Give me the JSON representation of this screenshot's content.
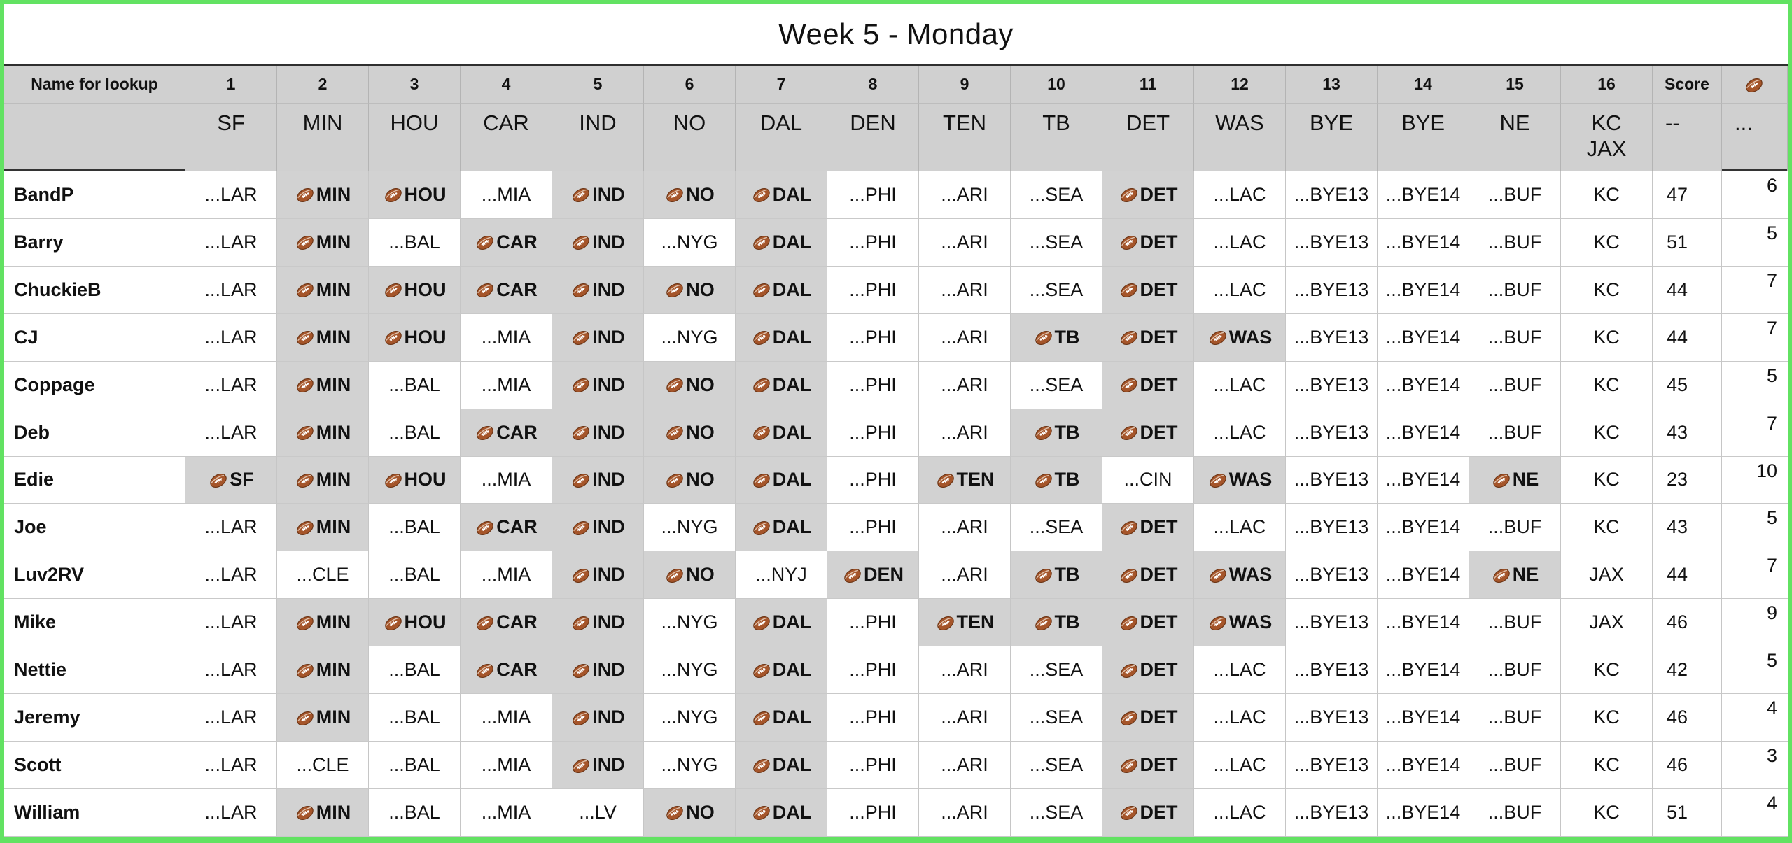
{
  "title": "Week 5 - Monday",
  "colors": {
    "selection_border_green": "#62e262",
    "header_gray": "#d0d0d0",
    "name_column_gray": "#dadada",
    "win_cell_gray": "#d2d2d2",
    "grid_line": "#c6c6c6",
    "football_brown": "#a5552a"
  },
  "icons": {
    "football": "football-icon"
  },
  "header": {
    "name_col": "Name for lookup",
    "week_numbers": [
      "1",
      "2",
      "3",
      "4",
      "5",
      "6",
      "7",
      "8",
      "9",
      "10",
      "11",
      "12",
      "13",
      "14",
      "15",
      "16"
    ],
    "score_label": "Score",
    "teams": [
      "SF",
      "MIN",
      "HOU",
      "CAR",
      "IND",
      "NO",
      "DAL",
      "DEN",
      "TEN",
      "TB",
      "DET",
      "WAS",
      "BYE",
      "BYE",
      "NE",
      "KC\nJAX"
    ],
    "score_sub": "--",
    "football_sub": "..."
  },
  "rows": [
    {
      "name": "BandP",
      "picks": [
        {
          "text": "...LAR",
          "win": false
        },
        {
          "text": "MIN",
          "win": true
        },
        {
          "text": "HOU",
          "win": true
        },
        {
          "text": "...MIA",
          "win": false
        },
        {
          "text": "IND",
          "win": true
        },
        {
          "text": "NO",
          "win": true
        },
        {
          "text": "DAL",
          "win": true
        },
        {
          "text": "...PHI",
          "win": false
        },
        {
          "text": "...ARI",
          "win": false
        },
        {
          "text": "...SEA",
          "win": false
        },
        {
          "text": "DET",
          "win": true
        },
        {
          "text": "...LAC",
          "win": false
        },
        {
          "text": "...BYE13",
          "win": false
        },
        {
          "text": "...BYE14",
          "win": false
        },
        {
          "text": "...BUF",
          "win": false
        }
      ],
      "kc_jax": "KC",
      "score": "47",
      "tiebreak": "6"
    },
    {
      "name": "Barry",
      "picks": [
        {
          "text": "...LAR",
          "win": false
        },
        {
          "text": "MIN",
          "win": true
        },
        {
          "text": "...BAL",
          "win": false
        },
        {
          "text": "CAR",
          "win": true
        },
        {
          "text": "IND",
          "win": true
        },
        {
          "text": "...NYG",
          "win": false
        },
        {
          "text": "DAL",
          "win": true
        },
        {
          "text": "...PHI",
          "win": false
        },
        {
          "text": "...ARI",
          "win": false
        },
        {
          "text": "...SEA",
          "win": false
        },
        {
          "text": "DET",
          "win": true
        },
        {
          "text": "...LAC",
          "win": false
        },
        {
          "text": "...BYE13",
          "win": false
        },
        {
          "text": "...BYE14",
          "win": false
        },
        {
          "text": "...BUF",
          "win": false
        }
      ],
      "kc_jax": "KC",
      "score": "51",
      "tiebreak": "5"
    },
    {
      "name": "ChuckieB",
      "picks": [
        {
          "text": "...LAR",
          "win": false
        },
        {
          "text": "MIN",
          "win": true
        },
        {
          "text": "HOU",
          "win": true
        },
        {
          "text": "CAR",
          "win": true
        },
        {
          "text": "IND",
          "win": true
        },
        {
          "text": "NO",
          "win": true
        },
        {
          "text": "DAL",
          "win": true
        },
        {
          "text": "...PHI",
          "win": false
        },
        {
          "text": "...ARI",
          "win": false
        },
        {
          "text": "...SEA",
          "win": false
        },
        {
          "text": "DET",
          "win": true
        },
        {
          "text": "...LAC",
          "win": false
        },
        {
          "text": "...BYE13",
          "win": false
        },
        {
          "text": "...BYE14",
          "win": false
        },
        {
          "text": "...BUF",
          "win": false
        }
      ],
      "kc_jax": "KC",
      "score": "44",
      "tiebreak": "7"
    },
    {
      "name": "CJ",
      "picks": [
        {
          "text": "...LAR",
          "win": false
        },
        {
          "text": "MIN",
          "win": true
        },
        {
          "text": "HOU",
          "win": true
        },
        {
          "text": "...MIA",
          "win": false
        },
        {
          "text": "IND",
          "win": true
        },
        {
          "text": "...NYG",
          "win": false
        },
        {
          "text": "DAL",
          "win": true
        },
        {
          "text": "...PHI",
          "win": false
        },
        {
          "text": "...ARI",
          "win": false
        },
        {
          "text": "TB",
          "win": true
        },
        {
          "text": "DET",
          "win": true
        },
        {
          "text": "WAS",
          "win": true
        },
        {
          "text": "...BYE13",
          "win": false
        },
        {
          "text": "...BYE14",
          "win": false
        },
        {
          "text": "...BUF",
          "win": false
        }
      ],
      "kc_jax": "KC",
      "score": "44",
      "tiebreak": "7"
    },
    {
      "name": "Coppage",
      "picks": [
        {
          "text": "...LAR",
          "win": false
        },
        {
          "text": "MIN",
          "win": true
        },
        {
          "text": "...BAL",
          "win": false
        },
        {
          "text": "...MIA",
          "win": false
        },
        {
          "text": "IND",
          "win": true
        },
        {
          "text": "NO",
          "win": true
        },
        {
          "text": "DAL",
          "win": true
        },
        {
          "text": "...PHI",
          "win": false
        },
        {
          "text": "...ARI",
          "win": false
        },
        {
          "text": "...SEA",
          "win": false
        },
        {
          "text": "DET",
          "win": true
        },
        {
          "text": "...LAC",
          "win": false
        },
        {
          "text": "...BYE13",
          "win": false
        },
        {
          "text": "...BYE14",
          "win": false
        },
        {
          "text": "...BUF",
          "win": false
        }
      ],
      "kc_jax": "KC",
      "score": "45",
      "tiebreak": "5"
    },
    {
      "name": "Deb",
      "picks": [
        {
          "text": "...LAR",
          "win": false
        },
        {
          "text": "MIN",
          "win": true
        },
        {
          "text": "...BAL",
          "win": false
        },
        {
          "text": "CAR",
          "win": true
        },
        {
          "text": "IND",
          "win": true
        },
        {
          "text": "NO",
          "win": true
        },
        {
          "text": "DAL",
          "win": true
        },
        {
          "text": "...PHI",
          "win": false
        },
        {
          "text": "...ARI",
          "win": false
        },
        {
          "text": "TB",
          "win": true
        },
        {
          "text": "DET",
          "win": true
        },
        {
          "text": "...LAC",
          "win": false
        },
        {
          "text": "...BYE13",
          "win": false
        },
        {
          "text": "...BYE14",
          "win": false
        },
        {
          "text": "...BUF",
          "win": false
        }
      ],
      "kc_jax": "KC",
      "score": "43",
      "tiebreak": "7"
    },
    {
      "name": "Edie",
      "picks": [
        {
          "text": "SF",
          "win": true
        },
        {
          "text": "MIN",
          "win": true
        },
        {
          "text": "HOU",
          "win": true
        },
        {
          "text": "...MIA",
          "win": false
        },
        {
          "text": "IND",
          "win": true
        },
        {
          "text": "NO",
          "win": true
        },
        {
          "text": "DAL",
          "win": true
        },
        {
          "text": "...PHI",
          "win": false
        },
        {
          "text": "TEN",
          "win": true
        },
        {
          "text": "TB",
          "win": true
        },
        {
          "text": "...CIN",
          "win": false
        },
        {
          "text": "WAS",
          "win": true
        },
        {
          "text": "...BYE13",
          "win": false
        },
        {
          "text": "...BYE14",
          "win": false
        },
        {
          "text": "NE",
          "win": true
        }
      ],
      "kc_jax": "KC",
      "score": "23",
      "tiebreak": "10"
    },
    {
      "name": "Joe",
      "picks": [
        {
          "text": "...LAR",
          "win": false
        },
        {
          "text": "MIN",
          "win": true
        },
        {
          "text": "...BAL",
          "win": false
        },
        {
          "text": "CAR",
          "win": true
        },
        {
          "text": "IND",
          "win": true
        },
        {
          "text": "...NYG",
          "win": false
        },
        {
          "text": "DAL",
          "win": true
        },
        {
          "text": "...PHI",
          "win": false
        },
        {
          "text": "...ARI",
          "win": false
        },
        {
          "text": "...SEA",
          "win": false
        },
        {
          "text": "DET",
          "win": true
        },
        {
          "text": "...LAC",
          "win": false
        },
        {
          "text": "...BYE13",
          "win": false
        },
        {
          "text": "...BYE14",
          "win": false
        },
        {
          "text": "...BUF",
          "win": false
        }
      ],
      "kc_jax": "KC",
      "score": "43",
      "tiebreak": "5"
    },
    {
      "name": "Luv2RV",
      "picks": [
        {
          "text": "...LAR",
          "win": false
        },
        {
          "text": "...CLE",
          "win": false
        },
        {
          "text": "...BAL",
          "win": false
        },
        {
          "text": "...MIA",
          "win": false
        },
        {
          "text": "IND",
          "win": true
        },
        {
          "text": "NO",
          "win": true
        },
        {
          "text": "...NYJ",
          "win": false
        },
        {
          "text": "DEN",
          "win": true
        },
        {
          "text": "...ARI",
          "win": false
        },
        {
          "text": "TB",
          "win": true
        },
        {
          "text": "DET",
          "win": true
        },
        {
          "text": "WAS",
          "win": true
        },
        {
          "text": "...BYE13",
          "win": false
        },
        {
          "text": "...BYE14",
          "win": false
        },
        {
          "text": "NE",
          "win": true
        }
      ],
      "kc_jax": "JAX",
      "score": "44",
      "tiebreak": "7"
    },
    {
      "name": "Mike",
      "picks": [
        {
          "text": "...LAR",
          "win": false
        },
        {
          "text": "MIN",
          "win": true
        },
        {
          "text": "HOU",
          "win": true
        },
        {
          "text": "CAR",
          "win": true
        },
        {
          "text": "IND",
          "win": true
        },
        {
          "text": "...NYG",
          "win": false
        },
        {
          "text": "DAL",
          "win": true
        },
        {
          "text": "...PHI",
          "win": false
        },
        {
          "text": "TEN",
          "win": true
        },
        {
          "text": "TB",
          "win": true
        },
        {
          "text": "DET",
          "win": true
        },
        {
          "text": "WAS",
          "win": true
        },
        {
          "text": "...BYE13",
          "win": false
        },
        {
          "text": "...BYE14",
          "win": false
        },
        {
          "text": "...BUF",
          "win": false
        }
      ],
      "kc_jax": "JAX",
      "score": "46",
      "tiebreak": "9"
    },
    {
      "name": "Nettie",
      "picks": [
        {
          "text": "...LAR",
          "win": false
        },
        {
          "text": "MIN",
          "win": true
        },
        {
          "text": "...BAL",
          "win": false
        },
        {
          "text": "CAR",
          "win": true
        },
        {
          "text": "IND",
          "win": true
        },
        {
          "text": "...NYG",
          "win": false
        },
        {
          "text": "DAL",
          "win": true
        },
        {
          "text": "...PHI",
          "win": false
        },
        {
          "text": "...ARI",
          "win": false
        },
        {
          "text": "...SEA",
          "win": false
        },
        {
          "text": "DET",
          "win": true
        },
        {
          "text": "...LAC",
          "win": false
        },
        {
          "text": "...BYE13",
          "win": false
        },
        {
          "text": "...BYE14",
          "win": false
        },
        {
          "text": "...BUF",
          "win": false
        }
      ],
      "kc_jax": "KC",
      "score": "42",
      "tiebreak": "5"
    },
    {
      "name": "Jeremy",
      "picks": [
        {
          "text": "...LAR",
          "win": false
        },
        {
          "text": "MIN",
          "win": true
        },
        {
          "text": "...BAL",
          "win": false
        },
        {
          "text": "...MIA",
          "win": false
        },
        {
          "text": "IND",
          "win": true
        },
        {
          "text": "...NYG",
          "win": false
        },
        {
          "text": "DAL",
          "win": true
        },
        {
          "text": "...PHI",
          "win": false
        },
        {
          "text": "...ARI",
          "win": false
        },
        {
          "text": "...SEA",
          "win": false
        },
        {
          "text": "DET",
          "win": true
        },
        {
          "text": "...LAC",
          "win": false
        },
        {
          "text": "...BYE13",
          "win": false
        },
        {
          "text": "...BYE14",
          "win": false
        },
        {
          "text": "...BUF",
          "win": false
        }
      ],
      "kc_jax": "KC",
      "score": "46",
      "tiebreak": "4"
    },
    {
      "name": "Scott",
      "picks": [
        {
          "text": "...LAR",
          "win": false
        },
        {
          "text": "...CLE",
          "win": false
        },
        {
          "text": "...BAL",
          "win": false
        },
        {
          "text": "...MIA",
          "win": false
        },
        {
          "text": "IND",
          "win": true
        },
        {
          "text": "...NYG",
          "win": false
        },
        {
          "text": "DAL",
          "win": true
        },
        {
          "text": "...PHI",
          "win": false
        },
        {
          "text": "...ARI",
          "win": false
        },
        {
          "text": "...SEA",
          "win": false
        },
        {
          "text": "DET",
          "win": true
        },
        {
          "text": "...LAC",
          "win": false
        },
        {
          "text": "...BYE13",
          "win": false
        },
        {
          "text": "...BYE14",
          "win": false
        },
        {
          "text": "...BUF",
          "win": false
        }
      ],
      "kc_jax": "KC",
      "score": "46",
      "tiebreak": "3"
    },
    {
      "name": "William",
      "picks": [
        {
          "text": "...LAR",
          "win": false
        },
        {
          "text": "MIN",
          "win": true
        },
        {
          "text": "...BAL",
          "win": false
        },
        {
          "text": "...MIA",
          "win": false
        },
        {
          "text": "...LV",
          "win": false
        },
        {
          "text": "NO",
          "win": true
        },
        {
          "text": "DAL",
          "win": true
        },
        {
          "text": "...PHI",
          "win": false
        },
        {
          "text": "...ARI",
          "win": false
        },
        {
          "text": "...SEA",
          "win": false
        },
        {
          "text": "DET",
          "win": true
        },
        {
          "text": "...LAC",
          "win": false
        },
        {
          "text": "...BYE13",
          "win": false
        },
        {
          "text": "...BYE14",
          "win": false
        },
        {
          "text": "...BUF",
          "win": false
        }
      ],
      "kc_jax": "KC",
      "score": "51",
      "tiebreak": "4"
    }
  ]
}
